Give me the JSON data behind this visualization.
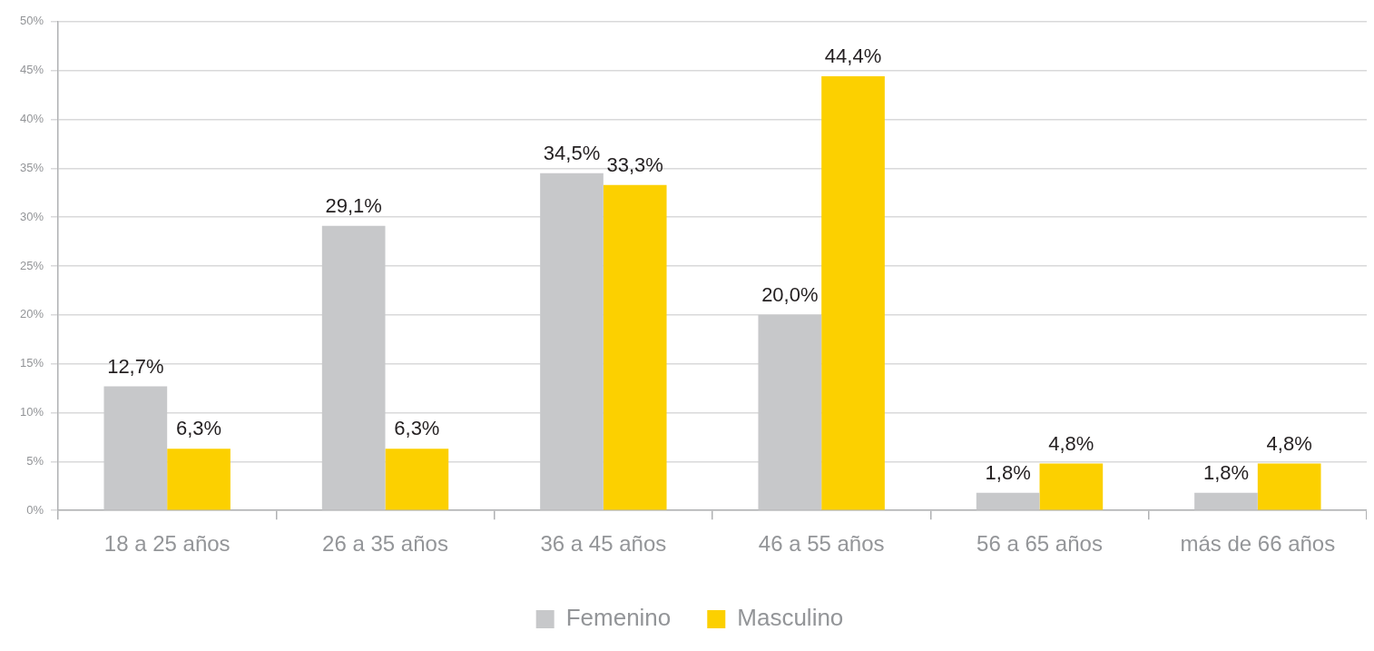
{
  "chart_data": {
    "type": "bar",
    "categories": [
      "18 a 25 años",
      "26 a 35 años",
      "36 a 45 años",
      "46 a 55 años",
      "56 a 65 años",
      "más de 66 años"
    ],
    "series": [
      {
        "name": "Femenino",
        "color": "#c7c8ca",
        "values": [
          12.7,
          29.1,
          34.5,
          20.0,
          1.8,
          1.8
        ],
        "value_labels": [
          "12,7%",
          "29,1%",
          "34,5%",
          "20,0%",
          "1,8%",
          "1,8%"
        ]
      },
      {
        "name": "Masculino",
        "color": "#fcd000",
        "values": [
          6.3,
          6.3,
          33.3,
          44.4,
          4.8,
          4.8
        ],
        "value_labels": [
          "6,3%",
          "6,3%",
          "33,3%",
          "44,4%",
          "4,8%",
          "4,8%"
        ]
      }
    ],
    "ylim": [
      0,
      50
    ],
    "yticks": [
      {
        "value": 0,
        "label": "0%"
      },
      {
        "value": 5,
        "label": "5%"
      },
      {
        "value": 10,
        "label": "10%"
      },
      {
        "value": 15,
        "label": "15%"
      },
      {
        "value": 20,
        "label": "20%"
      },
      {
        "value": 25,
        "label": "25%"
      },
      {
        "value": 30,
        "label": "30%"
      },
      {
        "value": 35,
        "label": "35%"
      },
      {
        "value": 40,
        "label": "40%"
      },
      {
        "value": 45,
        "label": "45%"
      },
      {
        "value": 50,
        "label": "50%"
      }
    ],
    "grid": "y",
    "legend": "bottom"
  }
}
